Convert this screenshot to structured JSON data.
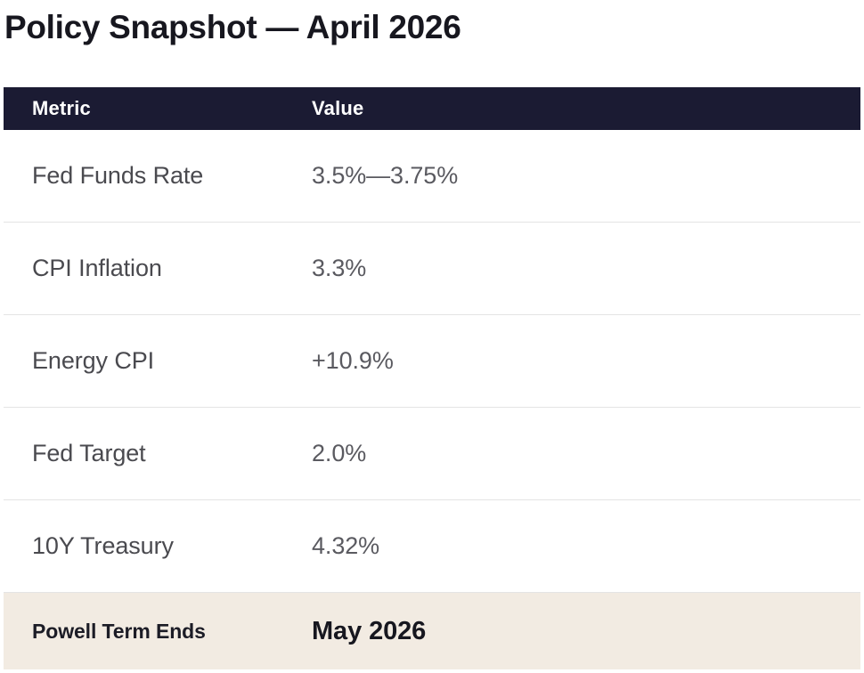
{
  "title": "Policy Snapshot — April 2026",
  "table": {
    "headers": {
      "metric": "Metric",
      "value": "Value"
    },
    "rows": [
      {
        "metric": "Fed Funds Rate",
        "value": "3.5%—3.75%"
      },
      {
        "metric": "CPI Inflation",
        "value": "3.3%"
      },
      {
        "metric": "Energy CPI",
        "value": "+10.9%"
      },
      {
        "metric": "Fed Target",
        "value": "2.0%"
      },
      {
        "metric": "10Y Treasury",
        "value": "4.32%"
      }
    ],
    "highlight_row": {
      "metric": "Powell Term Ends",
      "value": "May 2026"
    }
  },
  "colors": {
    "header_background": "#1b1b33",
    "highlight_background": "#f2ebe2"
  }
}
